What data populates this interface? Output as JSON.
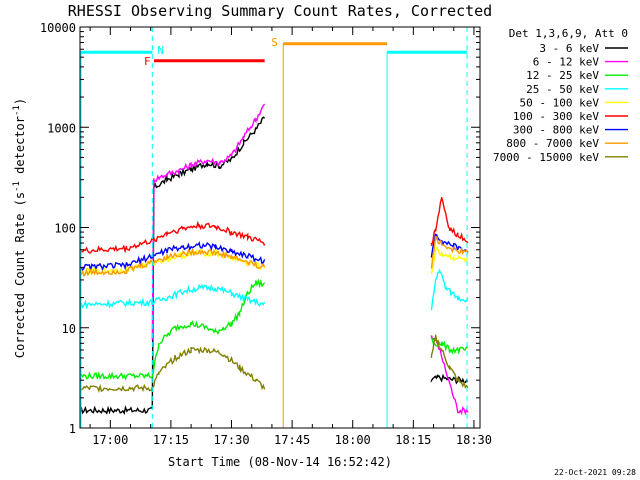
{
  "chart_data": {
    "type": "line",
    "title": "RHESSI Observing Summary Count Rates, Corrected",
    "xlabel": "Start Time (08-Nov-14 16:52:42)",
    "ylabel_prefix": "Corrected Count Rate (s",
    "ylabel_sup": "-1",
    "ylabel_mid": " detector",
    "ylabel_suffix": ")",
    "yscale": "log",
    "ylim": [
      1,
      10000
    ],
    "xlim_min": [
      -7.5,
      91.5
    ],
    "x_ticks": [
      {
        "m": 0,
        "label": "17:00"
      },
      {
        "m": 15,
        "label": "17:15"
      },
      {
        "m": 30,
        "label": "17:30"
      },
      {
        "m": 45,
        "label": "17:45"
      },
      {
        "m": 60,
        "label": "18:00"
      },
      {
        "m": 75,
        "label": "18:15"
      },
      {
        "m": 90,
        "label": "18:30"
      }
    ],
    "y_ticks": [
      {
        "v": 1,
        "label": "1"
      },
      {
        "v": 10,
        "label": "10"
      },
      {
        "v": 100,
        "label": "100"
      },
      {
        "v": 1000,
        "label": "1000"
      },
      {
        "v": 10000,
        "label": "10000"
      }
    ],
    "legend_title": "Det 1,3,6,9, Att 0",
    "legend_placement": "right",
    "grid": false,
    "series": [
      {
        "name": "3 - 6 keV",
        "color": "#000000",
        "x": [
          -7.5,
          10.4,
          10.8,
          14,
          17,
          20,
          24,
          27,
          30,
          33,
          36,
          38.2,
          79.5,
          81,
          86,
          88.5
        ],
        "y": [
          1.5,
          1.5,
          250,
          300,
          340,
          380,
          440,
          410,
          480,
          700,
          950,
          1250,
          3,
          3.2,
          3,
          3
        ]
      },
      {
        "name": "6 - 12 keV",
        "color": "#ff00ff",
        "x": [
          10.4,
          10.8,
          14,
          17,
          20,
          24,
          27,
          30,
          33,
          36,
          38.2,
          79.5,
          81,
          86,
          88.5
        ],
        "y": [
          8,
          300,
          340,
          370,
          420,
          470,
          440,
          520,
          800,
          1200,
          1700,
          8,
          7,
          1.5,
          1.5
        ]
      },
      {
        "name": "12 - 25 keV",
        "color": "#00ee00",
        "x": [
          -7.5,
          10.4,
          12,
          16,
          20,
          24,
          26,
          28,
          30,
          32,
          34,
          36,
          38.2,
          79.5,
          80,
          82,
          84,
          88.5
        ],
        "y": [
          3.3,
          3.3,
          7,
          10,
          11,
          10,
          9,
          10,
          11,
          14,
          22,
          28,
          27,
          8,
          7,
          7,
          6,
          6
        ]
      },
      {
        "name": "25 - 50 keV",
        "color": "#00ffff",
        "x": [
          -7.5,
          10.4,
          14,
          18,
          22,
          26,
          30,
          34,
          38.2,
          79.5,
          80.5,
          81.5,
          83,
          86,
          88.5
        ],
        "y": [
          17,
          18,
          20,
          23,
          25,
          25,
          22,
          19,
          17,
          15,
          30,
          38,
          25,
          20,
          19
        ]
      },
      {
        "name": "50 - 100 keV",
        "color": "#ffff00",
        "x": [
          -7.5,
          4,
          10.4,
          14,
          18,
          22,
          26,
          30,
          34,
          38.2,
          79.5,
          80.5,
          82,
          85,
          88.5
        ],
        "y": [
          36,
          38,
          44,
          49,
          53,
          56,
          55,
          50,
          44,
          40,
          35,
          60,
          55,
          50,
          47
        ]
      },
      {
        "name": "100 - 300 keV",
        "color": "#ff0000",
        "x": [
          -7.5,
          4,
          10.4,
          14,
          18,
          22,
          26,
          30,
          34,
          38.2,
          79.5,
          80.5,
          82,
          84,
          86,
          88.5
        ],
        "y": [
          58,
          62,
          74,
          88,
          98,
          105,
          102,
          90,
          80,
          70,
          70,
          95,
          200,
          95,
          85,
          75
        ]
      },
      {
        "name": "300 - 800 keV",
        "color": "#0000ff",
        "x": [
          -7.5,
          4,
          10.4,
          14,
          18,
          22,
          26,
          30,
          34,
          38.2,
          79.5,
          80.5,
          82,
          85,
          88.5
        ],
        "y": [
          40,
          42,
          52,
          59,
          64,
          67,
          64,
          58,
          52,
          46,
          50,
          85,
          75,
          65,
          58
        ]
      },
      {
        "name": "800 - 7000 keV",
        "color": "#ff9900",
        "x": [
          -7.5,
          4,
          10.4,
          14,
          18,
          22,
          26,
          30,
          34,
          38.2,
          79.5,
          80.5,
          82,
          85,
          88.5
        ],
        "y": [
          35,
          37,
          45,
          51,
          55,
          58,
          56,
          51,
          45,
          40,
          40,
          80,
          68,
          60,
          55
        ]
      },
      {
        "name": "7000 - 15000 keV",
        "color": "#808000",
        "x": [
          -7.5,
          10.4,
          12,
          16,
          20,
          24,
          28,
          32,
          36,
          38.2,
          79.5,
          80.5,
          82,
          84,
          86,
          88.5
        ],
        "y": [
          2.5,
          2.5,
          3.5,
          5,
          6,
          6,
          5.5,
          4,
          3,
          2.5,
          5,
          8,
          6,
          4,
          3,
          2.5
        ]
      }
    ],
    "annotations": {
      "orbit": {
        "label": "",
        "color": "#00ffff",
        "segments": [
          [
            -7.5,
            10.4
          ],
          [
            68.5,
            88.3
          ]
        ],
        "value": 5600
      },
      "flare": {
        "label": "F",
        "color": "#ff0000",
        "segments": [
          [
            10.8,
            38.2
          ]
        ],
        "value": 4600
      },
      "saa": {
        "label": "S",
        "color": "#ff9900",
        "segments": [
          [
            42.8,
            68.5
          ]
        ],
        "value": 6800
      },
      "night": {
        "label": "N",
        "color": "#00ffff",
        "value": 5600
      },
      "dashed_vlines": [
        10.4,
        88.3
      ],
      "solid_vlines": [
        -7.5,
        68.5
      ],
      "saa_vline": 42.8
    },
    "footer_date": "22-Oct-2021 09:28"
  }
}
